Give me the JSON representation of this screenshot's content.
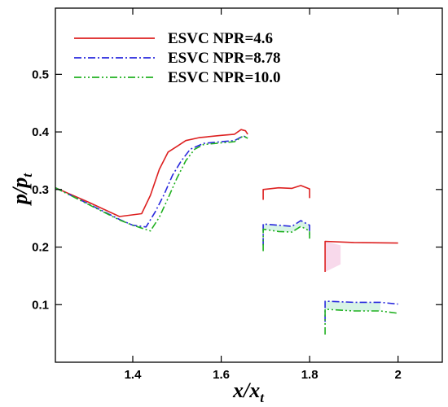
{
  "chart_data": {
    "type": "line",
    "title": "",
    "xlabel": {
      "main": "x/x",
      "sub": "t"
    },
    "ylabel": {
      "main": "p/p",
      "sub": "t"
    },
    "xlim": [
      1.225,
      2.1
    ],
    "ylim": [
      0.0,
      0.615
    ],
    "xticks": [
      1.4,
      1.6,
      1.8,
      2.0
    ],
    "xtick_labels": [
      "1.4",
      "1.6",
      "1.8",
      "2"
    ],
    "yticks": [
      0.1,
      0.2,
      0.3,
      0.4,
      0.5
    ],
    "ytick_labels": [
      "0.1",
      "0.2",
      "0.3",
      "0.4",
      "0.5"
    ],
    "grid": false,
    "legend_position": "top-left",
    "series": [
      {
        "name": "ESVC  NPR=4.6",
        "color": "#dd2020",
        "dash": "solid",
        "segments": [
          [
            [
              1.225,
              0.303
            ],
            [
              1.3,
              0.278
            ],
            [
              1.37,
              0.253
            ],
            [
              1.42,
              0.258
            ],
            [
              1.44,
              0.29
            ],
            [
              1.46,
              0.335
            ],
            [
              1.48,
              0.365
            ],
            [
              1.5,
              0.375
            ],
            [
              1.52,
              0.385
            ],
            [
              1.55,
              0.39
            ],
            [
              1.6,
              0.394
            ],
            [
              1.63,
              0.396
            ],
            [
              1.645,
              0.404
            ],
            [
              1.655,
              0.402
            ],
            [
              1.66,
              0.396
            ]
          ],
          [
            [
              1.695,
              0.282
            ],
            [
              1.695,
              0.3
            ],
            [
              1.73,
              0.303
            ],
            [
              1.76,
              0.302
            ],
            [
              1.78,
              0.307
            ],
            [
              1.8,
              0.301
            ],
            [
              1.8,
              0.285
            ]
          ],
          [
            [
              1.835,
              0.157
            ],
            [
              1.835,
              0.21
            ],
            [
              1.9,
              0.208
            ],
            [
              2.0,
              0.207
            ]
          ]
        ]
      },
      {
        "name": "ESVC  NPR=8.78",
        "color": "#2828dd",
        "dash": "dashdot",
        "segments": [
          [
            [
              1.225,
              0.303
            ],
            [
              1.3,
              0.275
            ],
            [
              1.37,
              0.248
            ],
            [
              1.4,
              0.238
            ],
            [
              1.43,
              0.235
            ],
            [
              1.45,
              0.26
            ],
            [
              1.47,
              0.29
            ],
            [
              1.49,
              0.325
            ],
            [
              1.51,
              0.35
            ],
            [
              1.53,
              0.37
            ],
            [
              1.56,
              0.38
            ],
            [
              1.6,
              0.383
            ],
            [
              1.63,
              0.385
            ],
            [
              1.65,
              0.393
            ],
            [
              1.66,
              0.39
            ]
          ],
          [
            [
              1.695,
              0.203
            ],
            [
              1.695,
              0.24
            ],
            [
              1.73,
              0.238
            ],
            [
              1.76,
              0.236
            ],
            [
              1.78,
              0.246
            ],
            [
              1.8,
              0.238
            ],
            [
              1.8,
              0.222
            ]
          ],
          [
            [
              1.835,
              0.07
            ],
            [
              1.835,
              0.106
            ],
            [
              1.9,
              0.104
            ],
            [
              1.96,
              0.104
            ],
            [
              2.0,
              0.101
            ]
          ]
        ]
      },
      {
        "name": "ESVC  NPR=10.0",
        "color": "#20b020",
        "dash": "dashdotdot",
        "segments": [
          [
            [
              1.225,
              0.303
            ],
            [
              1.3,
              0.274
            ],
            [
              1.37,
              0.247
            ],
            [
              1.4,
              0.238
            ],
            [
              1.44,
              0.228
            ],
            [
              1.46,
              0.252
            ],
            [
              1.48,
              0.285
            ],
            [
              1.5,
              0.32
            ],
            [
              1.52,
              0.35
            ],
            [
              1.54,
              0.37
            ],
            [
              1.56,
              0.378
            ],
            [
              1.6,
              0.381
            ],
            [
              1.63,
              0.383
            ],
            [
              1.65,
              0.393
            ],
            [
              1.66,
              0.389
            ]
          ],
          [
            [
              1.695,
              0.193
            ],
            [
              1.695,
              0.231
            ],
            [
              1.73,
              0.227
            ],
            [
              1.76,
              0.226
            ],
            [
              1.78,
              0.236
            ],
            [
              1.8,
              0.228
            ],
            [
              1.8,
              0.213
            ]
          ],
          [
            [
              1.835,
              0.048
            ],
            [
              1.835,
              0.092
            ],
            [
              1.9,
              0.089
            ],
            [
              1.96,
              0.089
            ],
            [
              2.0,
              0.085
            ]
          ]
        ]
      }
    ]
  }
}
